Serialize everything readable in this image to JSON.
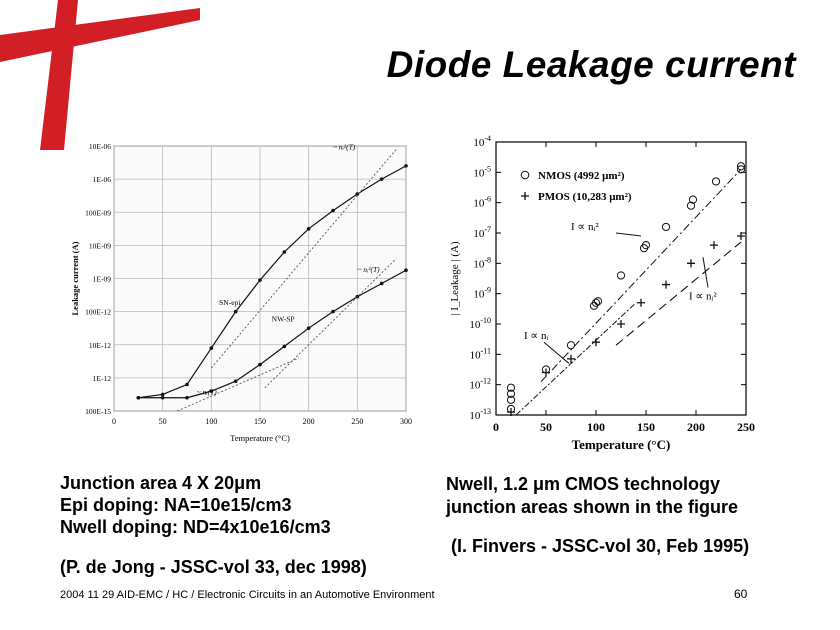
{
  "slide": {
    "title": "Diode Leakage current",
    "left_text": [
      "Junction area 4 X 20μm",
      "Epi doping: NA=10e15/cm3",
      "Nwell doping: ND=4x10e16/cm3"
    ],
    "left_citation": "(P. de Jong - JSSC-vol 33, dec 1998)",
    "right_text": [
      "Nwell, 1.2 μm CMOS technology",
      "junction areas shown in the figure"
    ],
    "right_citation": "(I. Finvers - JSSC-vol 30, Feb 1995)",
    "footer": "2004 11 29 AID-EMC / HC / Electronic Circuits in an Automotive Environment",
    "page_number": "60"
  },
  "colors": {
    "logo_red": "#d21f26",
    "curve": "#111111",
    "grid": "#b8b8b8"
  },
  "chart_data": [
    {
      "type": "line",
      "xlabel": "Temperature (°C)",
      "ylabel": "Leakage current (A)",
      "x_ticks": [
        "0",
        "50",
        "100",
        "150",
        "200",
        "250",
        "300"
      ],
      "y_ticks": [
        "100E-15",
        "1E-12",
        "10E-12",
        "100E-12",
        "1E-09",
        "10E-09",
        "100E-09",
        "1E-06",
        "10E-06"
      ],
      "xlim": [
        0,
        300
      ],
      "ylim_log10": [
        -13,
        -5
      ],
      "grid": true,
      "series": [
        {
          "name": "SN-epi",
          "x": [
            25,
            50,
            75,
            100,
            125,
            150,
            175,
            200,
            225,
            250,
            275,
            300
          ],
          "log10_y": [
            -12.6,
            -12.5,
            -12.2,
            -11.1,
            -10.0,
            -9.05,
            -8.2,
            -7.5,
            -6.95,
            -6.45,
            -6.0,
            -5.6
          ]
        },
        {
          "name": "NW-SP",
          "x": [
            25,
            50,
            75,
            100,
            125,
            150,
            175,
            200,
            225,
            250,
            275,
            300
          ],
          "log10_y": [
            -12.6,
            -12.6,
            -12.6,
            -12.4,
            -12.1,
            -11.6,
            -11.05,
            -10.5,
            -10.0,
            -9.55,
            -9.15,
            -8.75
          ]
        }
      ],
      "annotations": [
        "SN-epi",
        "NW-SP",
        "~ nᵢ²(T)",
        "~ nᵢ²(T)",
        "~ nᵢ(T)"
      ]
    },
    {
      "type": "scatter",
      "xlabel": "Temperature (°C)",
      "ylabel": "| I_Leakage | (A)",
      "x_ticks": [
        "0",
        "50",
        "100",
        "150",
        "200",
        "250"
      ],
      "y_ticks": [
        "10^-13",
        "10^-12",
        "10^-11",
        "10^-10",
        "10^-9",
        "10^-8",
        "10^-7",
        "10^-6",
        "10^-5",
        "10^-4"
      ],
      "xlim": [
        0,
        250
      ],
      "ylim_log10": [
        -13,
        -4
      ],
      "legend_position": "top-left",
      "series": [
        {
          "name": "NMOS (4992 μm²)",
          "marker": "circle",
          "x": [
            15,
            15,
            15,
            15,
            50,
            75,
            98,
            100,
            102,
            125,
            148,
            150,
            170,
            195,
            197,
            220,
            245,
            245
          ],
          "log10_y": [
            -12.8,
            -12.5,
            -12.3,
            -12.1,
            -11.5,
            -10.7,
            -9.4,
            -9.3,
            -9.25,
            -8.4,
            -7.5,
            -7.4,
            -6.8,
            -6.1,
            -5.9,
            -5.3,
            -4.9,
            -4.8
          ]
        },
        {
          "name": "PMOS (10,283 μm²)",
          "marker": "plus",
          "x": [
            15,
            50,
            75,
            100,
            125,
            145,
            170,
            195,
            218,
            245
          ],
          "log10_y": [
            -12.9,
            -11.6,
            -11.15,
            -10.6,
            -10.0,
            -9.3,
            -8.7,
            -8.0,
            -7.4,
            -7.1
          ]
        }
      ],
      "annotations": [
        "I ∝ nᵢ²",
        "I ∝ nᵢ",
        "I ∝ nᵢ²"
      ]
    }
  ]
}
